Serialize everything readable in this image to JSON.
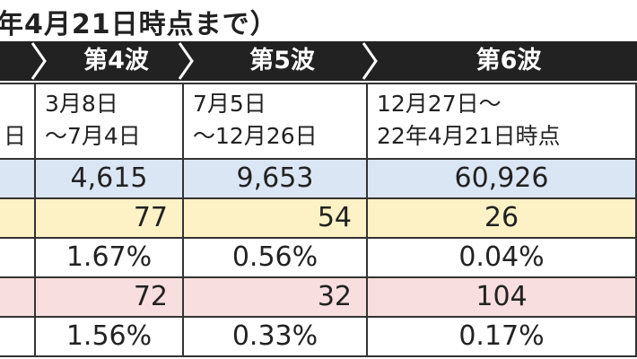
{
  "title": "年4月21日時点まで）",
  "header": [
    "第4波",
    "第5波",
    "第6波"
  ],
  "period_left": "日",
  "periods": [
    [
      "3月8日",
      "～7月4日"
    ],
    [
      "7月5日",
      "～12月26日"
    ],
    [
      "12月27日～",
      "22年4月21日時点"
    ]
  ],
  "rows": [
    [
      "4,615",
      "9,653",
      "60,926"
    ],
    [
      "77",
      "54",
      "26"
    ],
    [
      "1.67%",
      "0.56%",
      "0.04%"
    ],
    [
      "72",
      "32",
      "104"
    ],
    [
      "1.56%",
      "0.33%",
      "0.17%"
    ]
  ]
}
